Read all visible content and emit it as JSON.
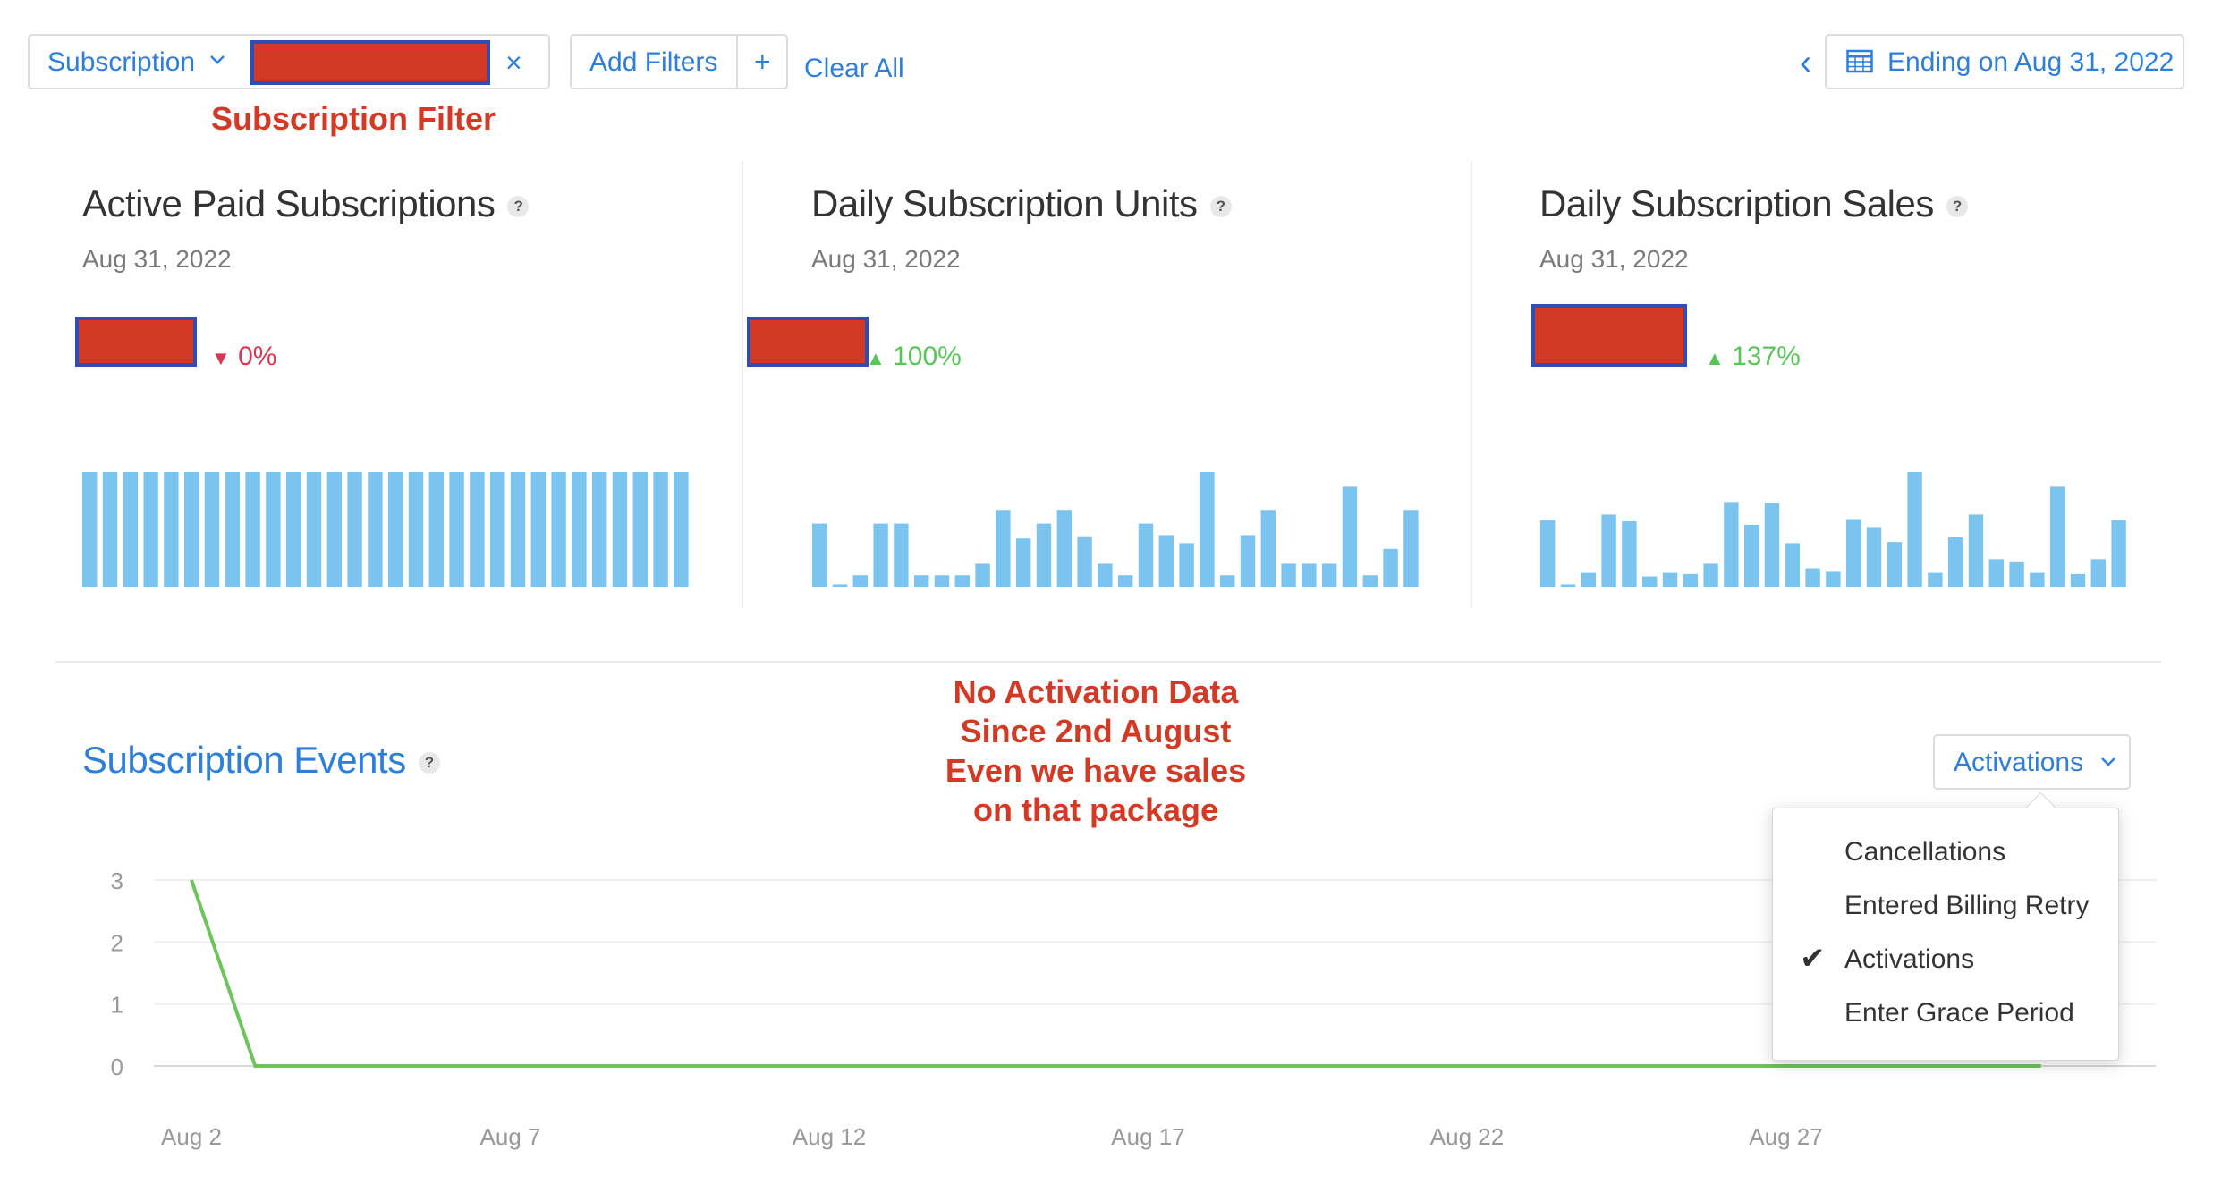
{
  "filters": {
    "subscription_label": "Subscription",
    "add_filters_label": "Add Filters",
    "add_icon": "+",
    "clear_all_label": "Clear All",
    "remove_icon": "×",
    "date_range_label": "Ending on Aug 31, 2022",
    "prev_icon": "‹"
  },
  "annotations": {
    "subscription_filter": "Subscription Filter",
    "no_activation_lines": [
      "No Activation Data",
      "Since 2nd August",
      "Even we have sales",
      "on that package"
    ]
  },
  "colors": {
    "accent": "#2f7fd8",
    "bar": "#7cc4f0",
    "line": "#6cc45a",
    "up": "#5cc35b",
    "down": "#d93654",
    "annotation": "#d23a25",
    "redaction_border": "#2d4fb5"
  },
  "cards": [
    {
      "title": "Active Paid Subscriptions",
      "help": "?",
      "date": "Aug 31, 2022",
      "delta": "0%",
      "direction": "down"
    },
    {
      "title": "Daily Subscription Units",
      "help": "?",
      "date": "Aug 31, 2022",
      "delta": "100%",
      "direction": "up"
    },
    {
      "title": "Daily Subscription Sales",
      "help": "?",
      "date": "Aug 31, 2022",
      "delta": "137%",
      "direction": "up"
    }
  ],
  "events": {
    "title": "Subscription Events",
    "help": "?",
    "selected_metric": "Activations",
    "menu_options": [
      "Cancellations",
      "Entered Billing Retry",
      "Activations",
      "Enter Grace Period"
    ],
    "checked_option": "Activations"
  },
  "chart_data": [
    {
      "type": "bar",
      "title": "Active Paid Subscriptions",
      "values": [
        1,
        1,
        1,
        1,
        1,
        1,
        1,
        1,
        1,
        1,
        1,
        1,
        1,
        1,
        1,
        1,
        1,
        1,
        1,
        1,
        1,
        1,
        1,
        1,
        1,
        1,
        1,
        1,
        1,
        1
      ],
      "ylim": [
        0,
        1
      ]
    },
    {
      "type": "bar",
      "title": "Daily Subscription Units",
      "values": [
        0.55,
        0.02,
        0.1,
        0.55,
        0.55,
        0.1,
        0.1,
        0.1,
        0.2,
        0.67,
        0.42,
        0.55,
        0.67,
        0.44,
        0.2,
        0.1,
        0.55,
        0.45,
        0.38,
        1.0,
        0.1,
        0.45,
        0.67,
        0.2,
        0.2,
        0.2,
        0.88,
        0.1,
        0.33,
        0.67
      ],
      "ylim": [
        0,
        1
      ]
    },
    {
      "type": "bar",
      "title": "Daily Subscription Sales",
      "values": [
        0.58,
        0.02,
        0.12,
        0.63,
        0.57,
        0.09,
        0.12,
        0.11,
        0.2,
        0.74,
        0.54,
        0.73,
        0.38,
        0.16,
        0.13,
        0.59,
        0.52,
        0.39,
        1.0,
        0.12,
        0.43,
        0.63,
        0.24,
        0.22,
        0.12,
        0.88,
        0.11,
        0.24,
        0.58,
        0.0
      ],
      "ylim": [
        0,
        1
      ]
    },
    {
      "type": "line",
      "title": "Subscription Events",
      "series": [
        {
          "name": "Activations",
          "x": [
            "Aug 2",
            "Aug 3",
            "Aug 4",
            "Aug 5",
            "Aug 6",
            "Aug 7",
            "Aug 8",
            "Aug 9",
            "Aug 10",
            "Aug 11",
            "Aug 12",
            "Aug 13",
            "Aug 14",
            "Aug 15",
            "Aug 16",
            "Aug 17",
            "Aug 18",
            "Aug 19",
            "Aug 20",
            "Aug 21",
            "Aug 22",
            "Aug 23",
            "Aug 24",
            "Aug 25",
            "Aug 26",
            "Aug 27",
            "Aug 28",
            "Aug 29",
            "Aug 30",
            "Aug 31"
          ],
          "values": [
            3,
            0,
            0,
            0,
            0,
            0,
            0,
            0,
            0,
            0,
            0,
            0,
            0,
            0,
            0,
            0,
            0,
            0,
            0,
            0,
            0,
            0,
            0,
            0,
            0,
            0,
            0,
            0,
            0,
            0
          ]
        }
      ],
      "y_ticks": [
        "3",
        "2",
        "1",
        "0"
      ],
      "x_ticks": [
        "Aug 2",
        "Aug 7",
        "Aug 12",
        "Aug 17",
        "Aug 22",
        "Aug 27"
      ],
      "ylim": [
        0,
        3
      ],
      "grid": true
    }
  ]
}
